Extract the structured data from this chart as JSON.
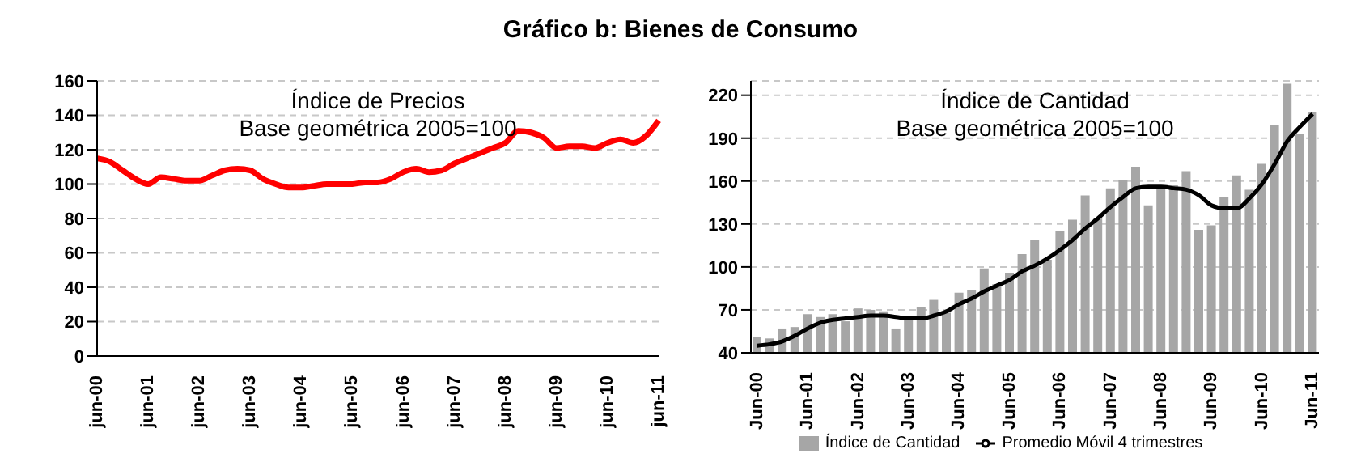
{
  "chart_data": [
    {
      "type": "line",
      "title": "Gráfico b: Bienes de Consumo",
      "annotations": [
        "Índice de Precios",
        "Base geométrica 2005=100"
      ],
      "categories": [
        "jun-00",
        null,
        null,
        null,
        "jun-01",
        null,
        null,
        null,
        "jun-02",
        null,
        null,
        null,
        "jun-03",
        null,
        null,
        null,
        "jun-04",
        null,
        null,
        null,
        "jun-05",
        null,
        null,
        null,
        "jun-06",
        null,
        null,
        null,
        "jun-07",
        null,
        null,
        null,
        "jun-08",
        null,
        null,
        null,
        "jun-09",
        null,
        null,
        null,
        "jun-10",
        null,
        null,
        null,
        "jun-11"
      ],
      "series": [
        {
          "color": "#ff0000",
          "values": [
            115,
            113,
            108,
            103,
            100,
            104,
            103,
            102,
            102,
            105,
            108,
            109,
            108,
            103,
            100,
            98,
            98,
            99,
            100,
            100,
            100,
            101,
            101,
            103,
            107,
            109,
            107,
            108,
            112,
            115,
            118,
            121,
            124,
            131,
            130,
            127,
            121,
            122,
            122,
            121,
            124,
            126,
            124,
            128,
            137
          ]
        }
      ],
      "ylim": [
        0,
        160
      ],
      "yticks": [
        0,
        20,
        40,
        60,
        80,
        100,
        120,
        140,
        160
      ],
      "grid": "y",
      "legend": false,
      "marker": "none",
      "line_style": "solid"
    },
    {
      "type": "bar",
      "annotations": [
        "Índice de Cantidad",
        "Base geométrica 2005=100"
      ],
      "categories": [
        "Jun-00",
        null,
        null,
        null,
        "Jun-01",
        null,
        null,
        null,
        "Jun-02",
        null,
        null,
        null,
        "Jun-03",
        null,
        null,
        null,
        "Jun-04",
        null,
        null,
        null,
        "Jun-05",
        null,
        null,
        null,
        "Jun-06",
        null,
        null,
        null,
        "Jun-07",
        null,
        null,
        null,
        "Jun-08",
        null,
        null,
        null,
        "Jun-09",
        null,
        null,
        null,
        "Jun-10",
        null,
        null,
        null,
        "Jun-11"
      ],
      "series": [
        {
          "type": "bar",
          "name": "Índice de Cantidad",
          "color": "#a6a6a6",
          "values": [
            51,
            50,
            57,
            58,
            67,
            65,
            67,
            62,
            71,
            70,
            69,
            57,
            64,
            72,
            77,
            68,
            82,
            84,
            99,
            88,
            96,
            109,
            119,
            105,
            125,
            133,
            150,
            134,
            155,
            161,
            170,
            143,
            155,
            157,
            167,
            126,
            129,
            149,
            164,
            154,
            172,
            199,
            228,
            193,
            208
          ]
        },
        {
          "type": "line",
          "name": "Promedio Móvil 4 trimestres",
          "color": "#000000",
          "values": [
            45,
            46,
            48,
            52,
            57,
            61,
            63,
            64,
            65,
            66,
            66,
            65,
            64,
            64,
            66,
            69,
            74,
            78,
            83,
            87,
            91,
            97,
            101,
            106,
            112,
            119,
            127,
            134,
            142,
            149,
            155,
            156,
            156,
            155,
            154,
            150,
            143,
            141,
            141,
            148,
            158,
            172,
            188,
            198,
            207
          ]
        }
      ],
      "ylim": [
        40,
        230
      ],
      "yticks": [
        40,
        70,
        100,
        130,
        160,
        190,
        220
      ],
      "grid": "y",
      "legend": "bottom",
      "marker": "none",
      "line_style": "solid"
    }
  ]
}
